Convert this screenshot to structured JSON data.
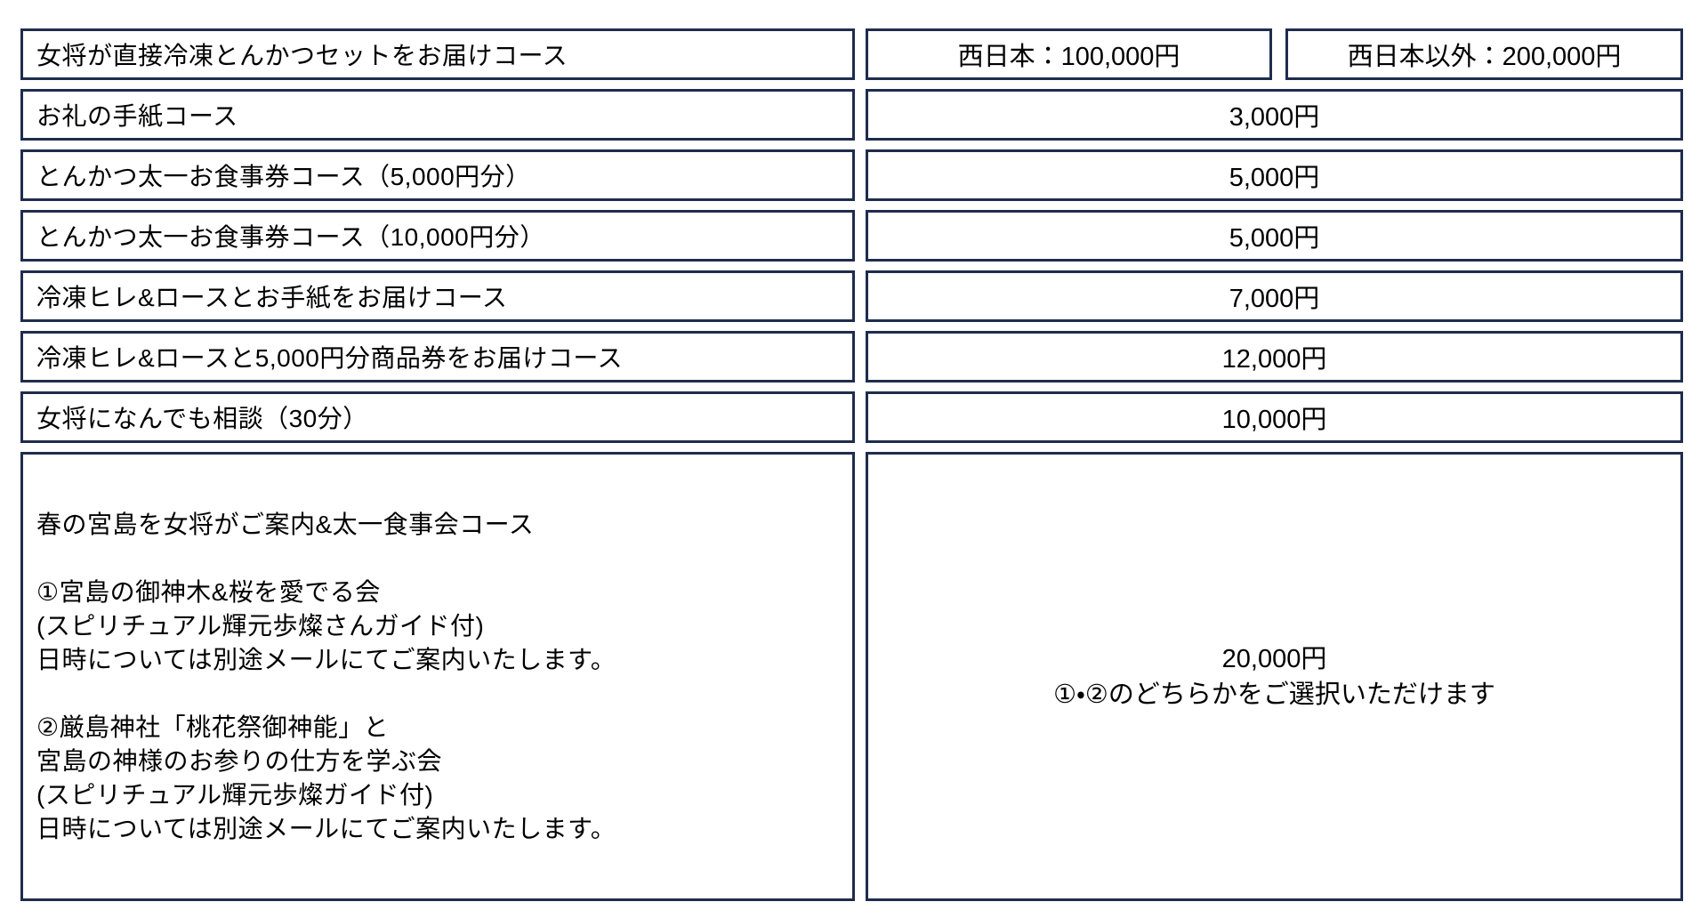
{
  "colors": {
    "cell_border": "#1f2c4d",
    "background": "#ffffff",
    "text": "#000000"
  },
  "rows": [
    {
      "name": "女将が直接冷凍とんかつセットをお届けコース",
      "price_west": "西日本：100,000円",
      "price_other": "西日本以外：200,000円"
    },
    {
      "name": "お礼の手紙コース",
      "price": "3,000円"
    },
    {
      "name": "とんかつ太一お食事券コース（5,000円分）",
      "price": "5,000円"
    },
    {
      "name": "とんかつ太一お食事券コース（10,000円分）",
      "price": "5,000円"
    },
    {
      "name": "冷凍ヒレ&ロースとお手紙をお届けコース",
      "price": "7,000円"
    },
    {
      "name": "冷凍ヒレ&ロースと5,000円分商品券をお届けコース",
      "price": "12,000円"
    },
    {
      "name": "女将になんでも相談（30分）",
      "price": "10,000円"
    },
    {
      "name": "春の宮島を女将がご案内&太一食事会コース\n\n①宮島の御神木&桜を愛でる会\n(スピリチュアル輝元歩燦さんガイド付)\n日時については別途メールにてご案内いたします。\n\n②厳島神社「桃花祭御神能」と\n宮島の神様のお参りの仕方を学ぶ会\n(スピリチュアル輝元歩燦ガイド付)\n日時については別途メールにてご案内いたします。",
      "price": "20,000円\n①・②のどちらかをご選択いただけます"
    }
  ]
}
